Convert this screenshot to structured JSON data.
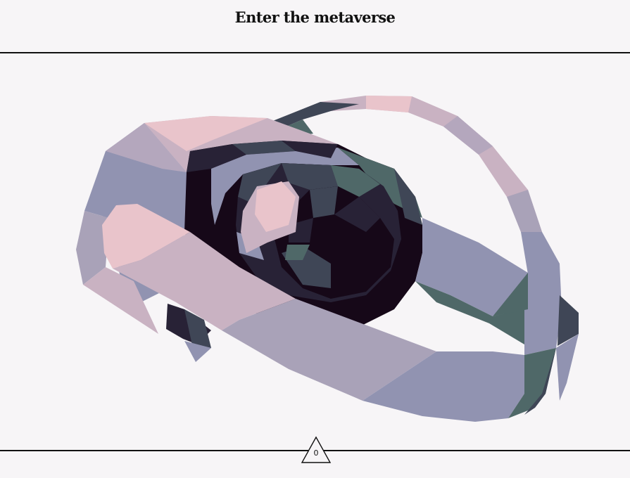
{
  "header": {
    "title": "Enter the metaverse"
  },
  "scene": {
    "object": "low-poly-headset-model",
    "palette": {
      "pink": "#e9c4cb",
      "mauve": "#c9b2c2",
      "lavender": "#9193b1",
      "slate": "#a9a2b8",
      "teal": "#4f6868",
      "charcoal": "#3f4656",
      "dark": "#282236",
      "black": "#160818"
    }
  },
  "counter": {
    "value": "0",
    "icon": "triangle-icon"
  }
}
